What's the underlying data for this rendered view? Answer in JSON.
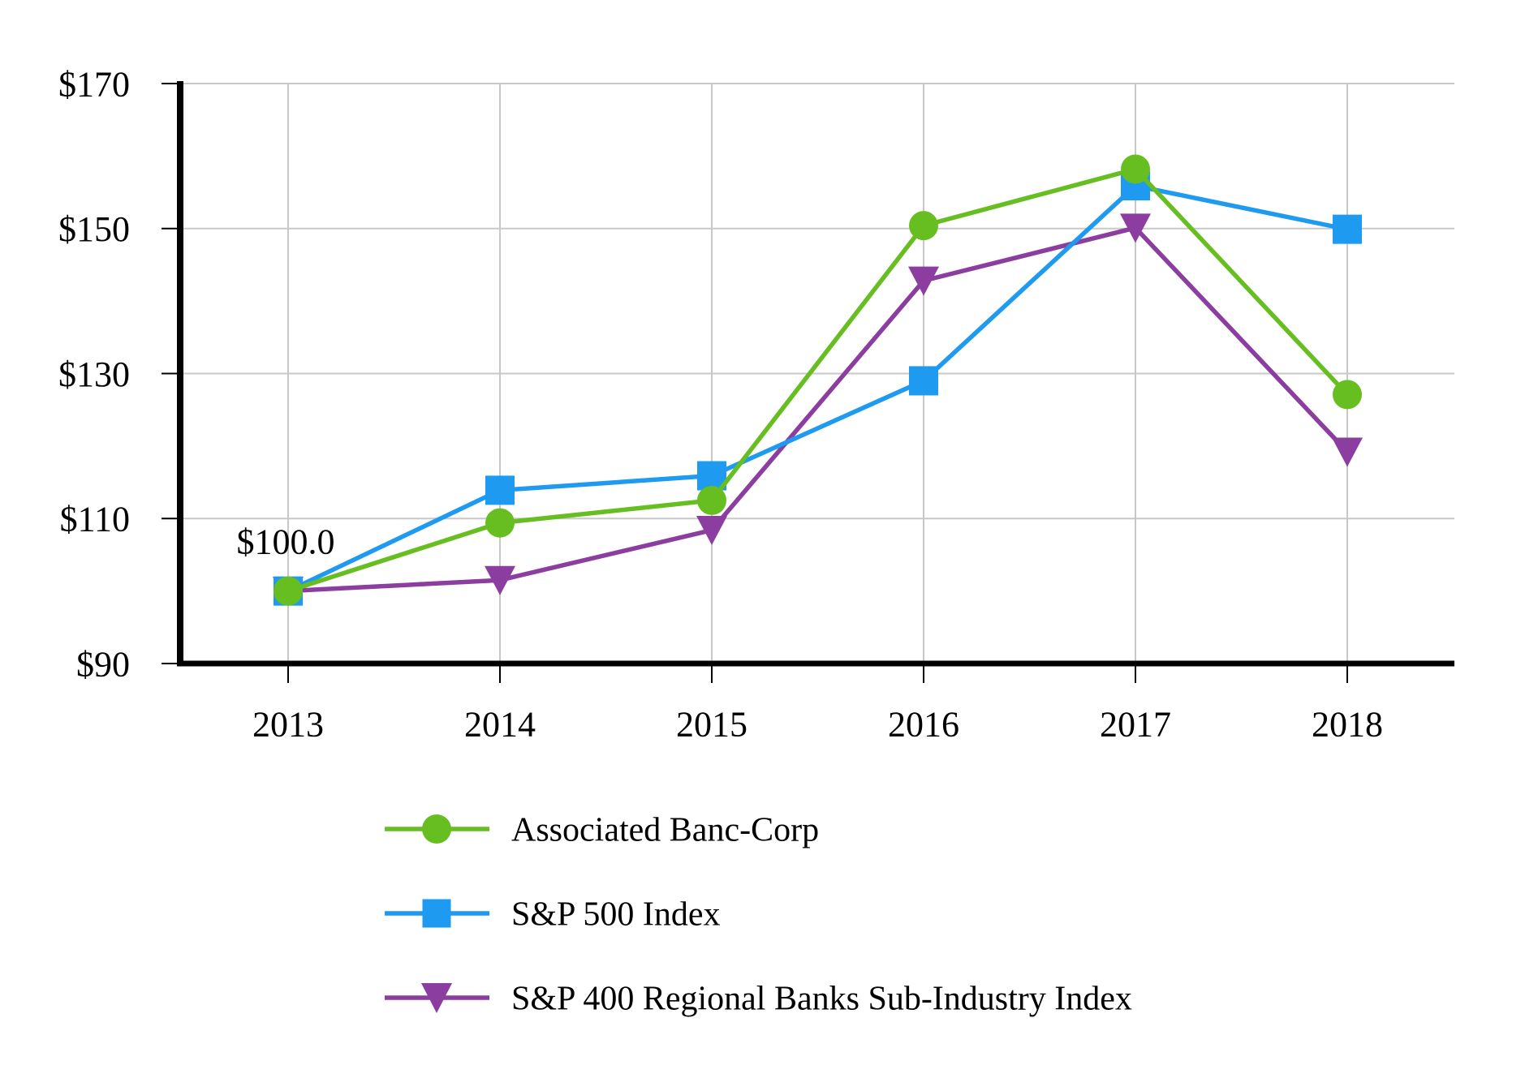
{
  "chart_data": {
    "type": "line",
    "title": "",
    "categories": [
      "2013",
      "2014",
      "2015",
      "2016",
      "2017",
      "2018"
    ],
    "series": [
      {
        "name": "Associated Banc-Corp",
        "marker": "circle",
        "color": "#66be21",
        "values": [
          100.0,
          109.4,
          112.5,
          150.4,
          158.2,
          127.1
        ]
      },
      {
        "name": "S&P 500 Index",
        "marker": "square",
        "color": "#1e9af0",
        "values": [
          100.0,
          113.9,
          115.9,
          129.0,
          155.9,
          149.9
        ]
      },
      {
        "name": "S&P 400 Regional Banks Sub-Industry Index",
        "marker": "triangle-down",
        "color": "#8c3da0",
        "values": [
          100.0,
          101.5,
          108.4,
          142.8,
          150.1,
          119.2
        ]
      }
    ],
    "ylim": [
      90,
      170
    ],
    "y_ticks": [
      90,
      110,
      130,
      150,
      170
    ],
    "y_tick_labels": [
      "$90",
      "$110",
      "$130",
      "$150",
      "$170"
    ],
    "x_tick_labels": [
      "2013",
      "2014",
      "2015",
      "2016",
      "2017",
      "2018"
    ],
    "annotation": {
      "text": "$100.0",
      "at_category": "2013",
      "value": 100.0
    },
    "grid": true,
    "legend_position": "bottom-left",
    "colors": {
      "axis": "#000000",
      "grid": "#c8c8c8",
      "background": "#ffffff",
      "text": "#000000"
    }
  }
}
